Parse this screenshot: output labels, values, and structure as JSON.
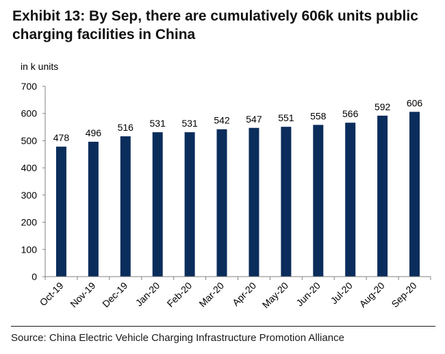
{
  "title": "Exhibit 13: By Sep, there are cumulatively 606k units public charging facilities in China",
  "source": "Source: China Electric Vehicle Charging Infrastructure Promotion Alliance",
  "colors": {
    "bar": "#0b2d5c",
    "axis": "#808080",
    "text": "#000000"
  },
  "chart_data": {
    "type": "bar",
    "title": "Exhibit 13: By Sep, there are cumulatively 606k units public charging facilities in China",
    "ylabel": "in k units",
    "xlabel": "",
    "categories": [
      "Oct-19",
      "Nov-19",
      "Dec-19",
      "Jan-20",
      "Feb-20",
      "Mar-20",
      "Apr-20",
      "May-20",
      "Jun-20",
      "Jul-20",
      "Aug-20",
      "Sep-20"
    ],
    "values": [
      478,
      496,
      516,
      531,
      531,
      542,
      547,
      551,
      558,
      566,
      592,
      606
    ],
    "ylim": [
      0,
      700
    ],
    "yticks": [
      0,
      100,
      200,
      300,
      400,
      500,
      600,
      700
    ],
    "grid": false,
    "legend": "none"
  }
}
